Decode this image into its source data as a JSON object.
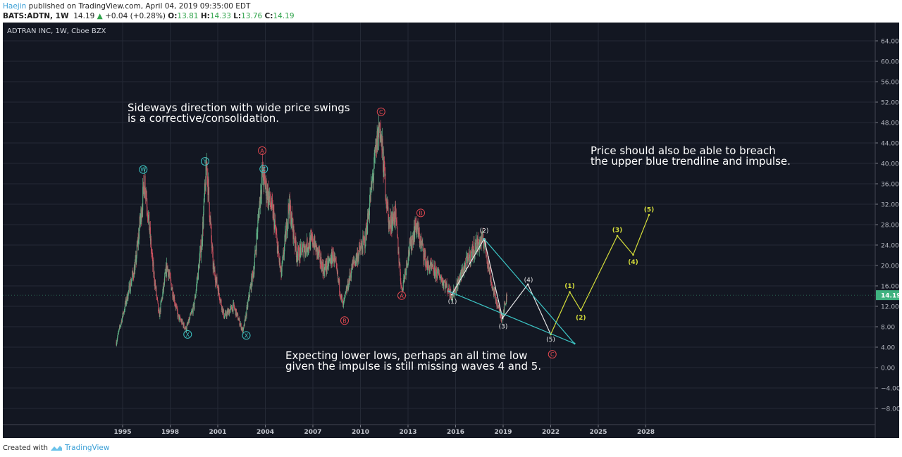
{
  "header": {
    "author": "Haejin",
    "published": "published on TradingView.com, April 04, 2019 09:35:00 EDT",
    "symbol": "BATS:ADTN, 1W",
    "last": "14.19",
    "change": "+0.04 (+0.28%)",
    "o_label": "O:",
    "o": "13.81",
    "h_label": "H:",
    "h": "14.33",
    "l_label": "L:",
    "l": "13.76",
    "c_label": "C:",
    "c": "14.19"
  },
  "footer": {
    "created_with": "Created with",
    "brand": "TradingView"
  },
  "notes": {
    "sideways": "Sideways direction with wide price swings\nis a corrective/consolidation.",
    "breach": "Price should also be able to breach\nthe upper blue trendline and impulse.",
    "lower": "Expecting lower lows, perhaps an all time low\ngiven the impulse is still missing waves 4 and 5."
  },
  "colors": {
    "bg": "#131722",
    "grid": "#252a36",
    "up": "#5fae85",
    "down": "#c8505e",
    "teal": "#3cc4c4",
    "yellow": "#d4dc3a",
    "red": "#e0474f",
    "white": "#e6e6e6",
    "last": "#3fb27f"
  },
  "chart_data": {
    "type": "candlestick",
    "title": "ADTRAN INC, 1W, Cboe BZX",
    "last_price": "14.19",
    "xlim": [
      1993.8,
      2041.4
    ],
    "ylim": [
      -8,
      64
    ],
    "x_ticks": [
      "1995",
      "1998",
      "2001",
      "2004",
      "2007",
      "2010",
      "2013",
      "2016",
      "2019",
      "2022",
      "2025",
      "2028"
    ],
    "y_ticks": [
      "64.00",
      "60.00",
      "56.00",
      "52.00",
      "48.00",
      "44.00",
      "40.00",
      "36.00",
      "32.00",
      "28.00",
      "24.00",
      "20.00",
      "16.00",
      "12.00",
      "8.00",
      "4.00",
      "0.00",
      "−4.00",
      "−8.00"
    ],
    "price_path": [
      [
        1994.6,
        5
      ],
      [
        1995.3,
        14
      ],
      [
        1995.8,
        20
      ],
      [
        1996.4,
        37
      ],
      [
        1996.9,
        20
      ],
      [
        1997.3,
        10
      ],
      [
        1997.8,
        20
      ],
      [
        1998.5,
        10
      ],
      [
        1999.0,
        7.5
      ],
      [
        1999.5,
        12
      ],
      [
        2000.0,
        25
      ],
      [
        2000.3,
        40
      ],
      [
        2000.7,
        20
      ],
      [
        2001.4,
        10
      ],
      [
        2002.0,
        12
      ],
      [
        2002.6,
        7
      ],
      [
        2003.3,
        20
      ],
      [
        2003.8,
        38
      ],
      [
        2004.5,
        30
      ],
      [
        2005.0,
        18
      ],
      [
        2005.5,
        32
      ],
      [
        2006.0,
        22
      ],
      [
        2007.0,
        25
      ],
      [
        2007.7,
        19
      ],
      [
        2008.3,
        22
      ],
      [
        2008.9,
        12
      ],
      [
        2009.5,
        20
      ],
      [
        2010.3,
        25
      ],
      [
        2011.2,
        48
      ],
      [
        2011.8,
        28
      ],
      [
        2012.2,
        30
      ],
      [
        2012.6,
        15
      ],
      [
        2013.0,
        22
      ],
      [
        2013.5,
        28
      ],
      [
        2014.2,
        20
      ],
      [
        2015.0,
        18
      ],
      [
        2015.8,
        14
      ],
      [
        2016.6,
        20
      ],
      [
        2017.3,
        24
      ],
      [
        2017.8,
        25
      ],
      [
        2018.3,
        16
      ],
      [
        2018.9,
        9.5
      ],
      [
        2019.25,
        14.19
      ]
    ],
    "wave_labels": [
      {
        "text": "W",
        "x": 1996.3,
        "y": 38.8,
        "style": "teal-circle"
      },
      {
        "text": "X",
        "x": 1999.1,
        "y": 6.5,
        "style": "teal-circle"
      },
      {
        "text": "Y",
        "x": 2000.2,
        "y": 40.4,
        "style": "teal-circle"
      },
      {
        "text": "X",
        "x": 2002.8,
        "y": 6.3,
        "style": "teal-circle"
      },
      {
        "text": "Z",
        "x": 2003.9,
        "y": 38.9,
        "style": "teal-circle"
      },
      {
        "text": "A",
        "x": 2003.8,
        "y": 42.5,
        "style": "red-circle"
      },
      {
        "text": "C",
        "x": 2011.3,
        "y": 50.1,
        "style": "red-circle"
      },
      {
        "text": "B",
        "x": 2013.8,
        "y": 30.3,
        "style": "red-circle"
      },
      {
        "text": "A",
        "x": 2012.6,
        "y": 14.1,
        "style": "red-circle"
      },
      {
        "text": "B",
        "x": 2009.0,
        "y": 9.2,
        "style": "red-circle"
      },
      {
        "text": "C",
        "x": 2022.1,
        "y": 2.6,
        "style": "red-circle"
      },
      {
        "text": "(1)",
        "x": 2015.8,
        "y": 13.0,
        "style": "white"
      },
      {
        "text": "(2)",
        "x": 2017.8,
        "y": 26.8,
        "style": "white"
      },
      {
        "text": "(3)",
        "x": 2019.0,
        "y": 8.1,
        "style": "white"
      },
      {
        "text": "(4)",
        "x": 2020.6,
        "y": 17.2,
        "style": "white"
      },
      {
        "text": "(5)",
        "x": 2022.0,
        "y": 5.5,
        "style": "white"
      },
      {
        "text": "(1)",
        "x": 2023.2,
        "y": 16.0,
        "style": "yellow"
      },
      {
        "text": "(2)",
        "x": 2023.9,
        "y": 9.8,
        "style": "yellow"
      },
      {
        "text": "(3)",
        "x": 2026.2,
        "y": 27.0,
        "style": "yellow"
      },
      {
        "text": "(4)",
        "x": 2027.2,
        "y": 20.7,
        "style": "yellow"
      },
      {
        "text": "(5)",
        "x": 2028.2,
        "y": 31.0,
        "style": "yellow"
      }
    ],
    "wave_paths": [
      {
        "name": "impulse-down",
        "color": "white",
        "points": [
          [
            2015.76,
            14.3
          ],
          [
            2017.8,
            25.2
          ],
          [
            2018.96,
            9.7
          ],
          [
            2020.56,
            16.3
          ],
          [
            2022.0,
            6.5
          ]
        ]
      },
      {
        "name": "impulse-up",
        "color": "yellow",
        "points": [
          [
            2022.0,
            6.5
          ],
          [
            2023.2,
            14.8
          ],
          [
            2023.9,
            11.2
          ],
          [
            2026.2,
            25.8
          ],
          [
            2027.2,
            22.1
          ],
          [
            2028.2,
            29.9
          ]
        ]
      },
      {
        "name": "upper-trendline",
        "color": "teal",
        "points": [
          [
            2017.8,
            25.2
          ],
          [
            2023.5,
            4.7
          ]
        ]
      },
      {
        "name": "lower-trendline",
        "color": "teal",
        "points": [
          [
            2015.6,
            14.9
          ],
          [
            2023.5,
            4.7
          ]
        ]
      }
    ]
  }
}
